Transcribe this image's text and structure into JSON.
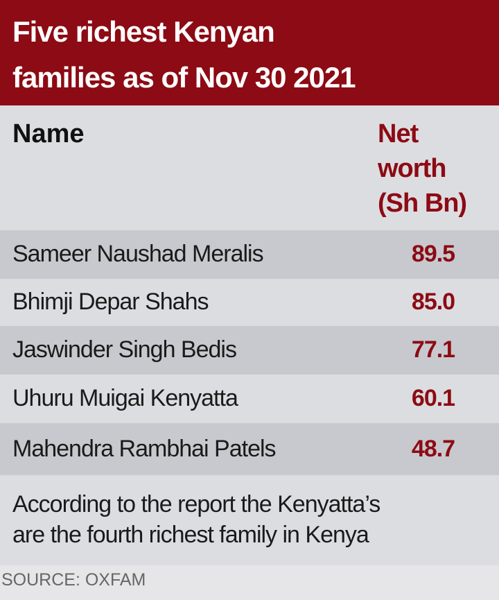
{
  "header": {
    "title_lines": [
      "Five richest Kenyan",
      "families as of Nov 30 2021"
    ]
  },
  "table": {
    "columns": [
      "Name",
      [
        "Net",
        "worth",
        "(Sh Bn)"
      ]
    ],
    "rows": [
      [
        "Sameer Naushad Meralis",
        "89.5"
      ],
      [
        "Bhimji Depar Shahs",
        "85.0"
      ],
      [
        "Jaswinder Singh Bedis",
        "77.1"
      ],
      [
        "Uhuru Muigai Kenyatta",
        "60.1"
      ],
      [
        "Mahendra Rambhai Patels",
        "48.7"
      ]
    ]
  },
  "note_lines": [
    "According to the report the Kenyatta’s",
    "are the fourth richest family in Kenya"
  ],
  "source": "SOURCE:  OXFAM"
}
